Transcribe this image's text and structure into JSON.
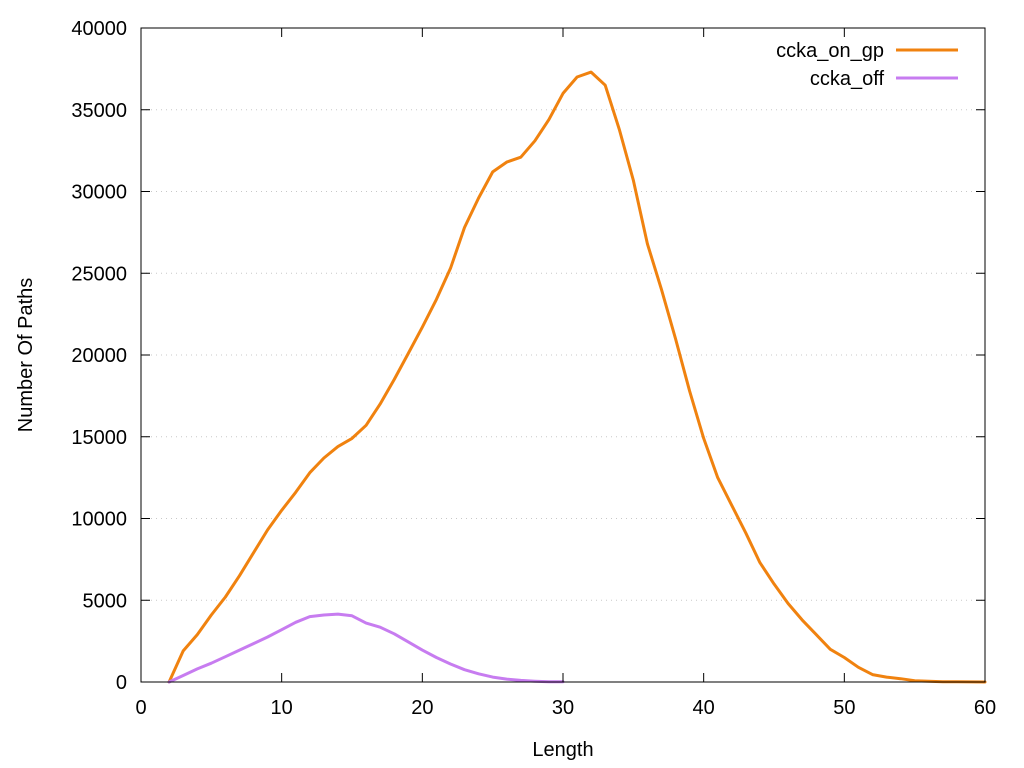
{
  "chart_data": {
    "type": "line",
    "title": "",
    "xlabel": "Length",
    "ylabel": "Number Of Paths",
    "xlim": [
      0,
      60
    ],
    "ylim": [
      0,
      40000
    ],
    "xticks": [
      0,
      10,
      20,
      30,
      40,
      50,
      60
    ],
    "yticks": [
      0,
      5000,
      10000,
      15000,
      20000,
      25000,
      30000,
      35000,
      40000
    ],
    "grid": "horizontal dotted",
    "legend_position": "top-right",
    "series": [
      {
        "name": "ccka_on_gp",
        "color": "#f0820f",
        "x": [
          2,
          3,
          4,
          5,
          6,
          7,
          8,
          9,
          10,
          11,
          12,
          13,
          14,
          15,
          16,
          17,
          18,
          19,
          20,
          21,
          22,
          23,
          24,
          25,
          26,
          27,
          28,
          29,
          30,
          31,
          32,
          33,
          34,
          35,
          36,
          37,
          38,
          39,
          40,
          41,
          42,
          43,
          44,
          45,
          46,
          47,
          48,
          49,
          50,
          51,
          52,
          53,
          54,
          55,
          56,
          57,
          58,
          59,
          60
        ],
        "y": [
          0,
          1900,
          2900,
          4100,
          5200,
          6500,
          7900,
          9300,
          10500,
          11600,
          12800,
          13700,
          14400,
          14900,
          15700,
          17000,
          18500,
          20100,
          21700,
          23400,
          25300,
          27800,
          29600,
          31200,
          31800,
          32100,
          33100,
          34400,
          36000,
          37000,
          37300,
          36500,
          33800,
          30700,
          26800,
          24000,
          21000,
          17800,
          14900,
          12500,
          10800,
          9100,
          7300,
          6000,
          4800,
          3800,
          2900,
          2000,
          1500,
          900,
          450,
          300,
          200,
          80,
          40,
          20,
          10,
          5,
          0
        ]
      },
      {
        "name": "ccka_off",
        "color": "#c77cf0",
        "x": [
          2,
          3,
          4,
          5,
          6,
          7,
          8,
          9,
          10,
          11,
          12,
          13,
          14,
          15,
          16,
          17,
          18,
          19,
          20,
          21,
          22,
          23,
          24,
          25,
          26,
          27,
          28,
          29,
          30
        ],
        "y": [
          0,
          400,
          800,
          1150,
          1550,
          1950,
          2350,
          2750,
          3200,
          3650,
          4000,
          4100,
          4150,
          4050,
          3600,
          3350,
          2950,
          2450,
          1950,
          1500,
          1100,
          750,
          500,
          300,
          180,
          100,
          50,
          20,
          10
        ]
      }
    ]
  }
}
